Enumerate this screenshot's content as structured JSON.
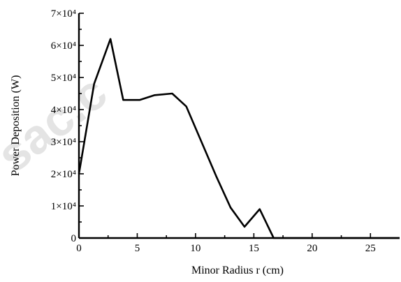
{
  "chart_data": {
    "type": "line",
    "xlabel": "Minor Radius r (cm)",
    "ylabel": "Power Deposition (W)",
    "xlim": [
      0,
      27.5
    ],
    "ylim": [
      0,
      70000
    ],
    "x_ticks": [
      0,
      5,
      10,
      15,
      20,
      25
    ],
    "x_tick_labels": [
      "0",
      "5",
      "10",
      "15",
      "20",
      "25"
    ],
    "y_ticks": [
      0,
      10000,
      20000,
      30000,
      40000,
      50000,
      60000,
      70000
    ],
    "y_tick_labels": [
      "0",
      "1×10⁴",
      "2×10⁴",
      "3×10⁴",
      "4×10⁴",
      "5×10⁴",
      "6×10⁴",
      "7×10⁴"
    ],
    "grid": false,
    "series": [
      {
        "x": [
          0,
          1.3,
          2.7,
          3.8,
          5.2,
          6.5,
          8.0,
          9.2,
          10.5,
          11.8,
          13.0,
          14.2,
          15.5,
          16.7,
          17.2,
          27.5
        ],
        "y": [
          20000,
          48000,
          62000,
          43000,
          43000,
          44500,
          45000,
          41000,
          30000,
          19000,
          9500,
          3500,
          9000,
          0,
          0,
          0
        ]
      }
    ]
  },
  "watermark": {
    "text": "sac.c"
  }
}
